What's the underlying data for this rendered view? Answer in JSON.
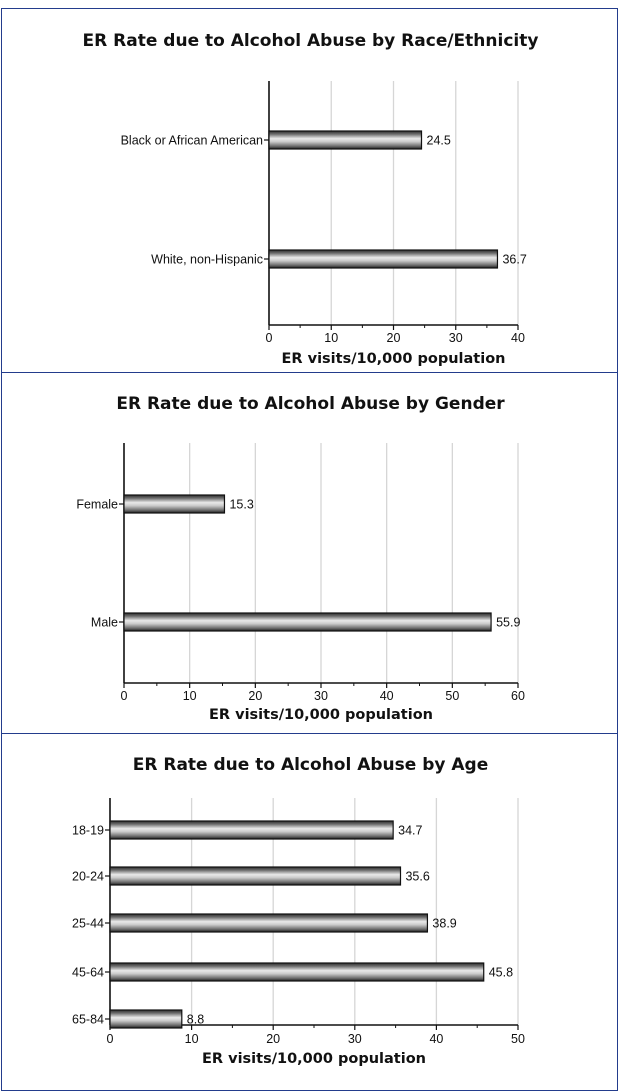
{
  "chart_data": [
    {
      "type": "bar",
      "orientation": "horizontal",
      "title": "ER Rate due to Alcohol Abuse by Race/Ethnicity",
      "xlabel": "ER visits/10,000 population",
      "ylabel": "",
      "categories": [
        "Black or African American",
        "White, non-Hispanic"
      ],
      "values": [
        24.5,
        36.7
      ],
      "value_labels": [
        "24.5",
        "36.7"
      ],
      "xlim": [
        0,
        40
      ],
      "ticks": [
        "0",
        "10",
        "20",
        "30",
        "40"
      ],
      "grid": true
    },
    {
      "type": "bar",
      "orientation": "horizontal",
      "title": "ER Rate due to Alcohol Abuse by Gender",
      "xlabel": "ER visits/10,000 population",
      "ylabel": "",
      "categories": [
        "Female",
        "Male"
      ],
      "values": [
        15.3,
        55.9
      ],
      "value_labels": [
        "15.3",
        "55.9"
      ],
      "xlim": [
        0,
        60
      ],
      "ticks": [
        "0",
        "10",
        "20",
        "30",
        "40",
        "50",
        "60"
      ],
      "grid": true
    },
    {
      "type": "bar",
      "orientation": "horizontal",
      "title": "ER Rate due to Alcohol Abuse by Age",
      "xlabel": "ER visits/10,000 population",
      "ylabel": "",
      "categories": [
        "18-19",
        "20-24",
        "25-44",
        "45-64",
        "65-84"
      ],
      "values": [
        34.7,
        35.6,
        38.9,
        45.8,
        8.8
      ],
      "value_labels": [
        "34.7",
        "35.6",
        "38.9",
        "45.8",
        "8.8"
      ],
      "xlim": [
        0,
        50
      ],
      "ticks": [
        "0",
        "10",
        "20",
        "30",
        "40",
        "50"
      ],
      "grid": true
    }
  ]
}
